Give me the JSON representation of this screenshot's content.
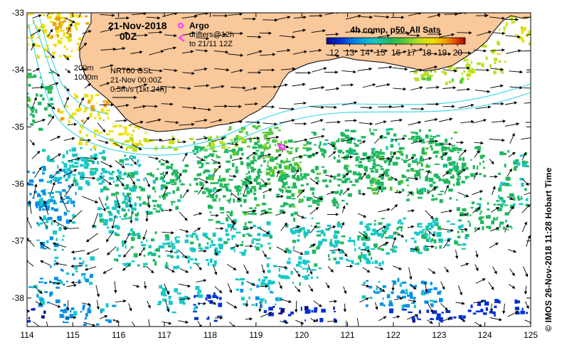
{
  "map": {
    "date": "21-Nov-2018",
    "hour": "00Z",
    "argo_label": "Argo",
    "drifters_label": "drifters@12h",
    "drifters_to": "to 21/11 12Z",
    "isobath_1": "200m",
    "isobath_2": "1000m",
    "product": "NRT00 GSL",
    "product_time": "21-Nov 00:00Z",
    "scale_label": "0.5m/s (1kt 24h)",
    "colorbar_title": "4h comp, p50, All Sats",
    "colorbar_ticks": [
      "12",
      "13",
      "14",
      "15",
      "16",
      "17",
      "18",
      "19",
      "20"
    ],
    "x_ticks": [
      "114",
      "115",
      "116",
      "117",
      "118",
      "119",
      "120",
      "121",
      "122",
      "123",
      "124",
      "125"
    ],
    "y_ticks": [
      "-33",
      "-34",
      "-35",
      "-36",
      "-37",
      "-38"
    ],
    "credit": "© IMOS 26-Nov-2018 11:28 Hobart Time",
    "colors": {
      "land": "#f9c89b",
      "shelf_contour": "#2fd4e6",
      "argo": "#ff33ff",
      "frame": "#000000"
    },
    "lon_range": [
      114,
      125
    ],
    "lat_range": [
      -38.5,
      -33
    ],
    "sst_range": [
      12,
      21
    ]
  }
}
